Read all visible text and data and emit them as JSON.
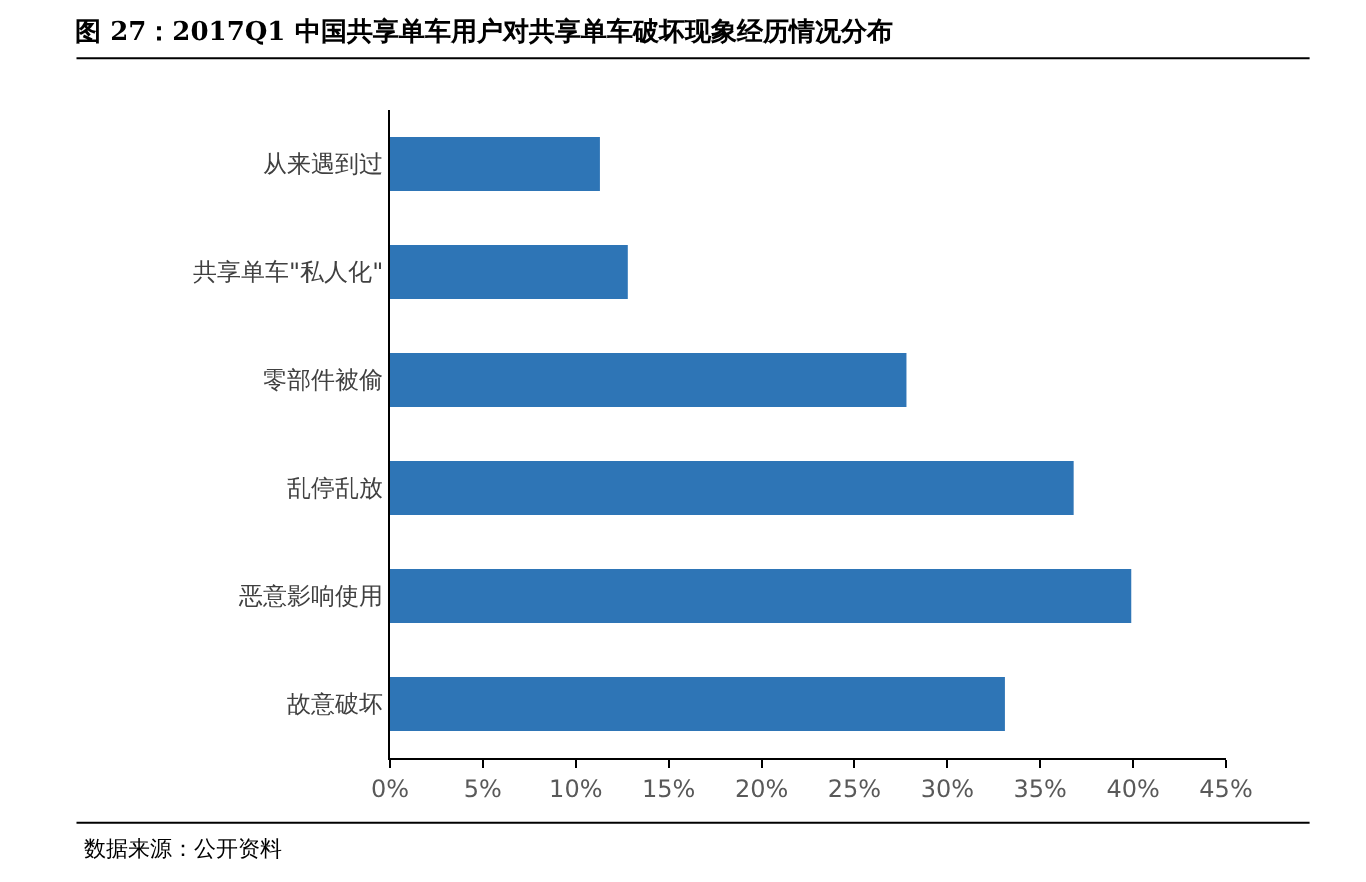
{
  "chart_data": {
    "type": "bar",
    "orientation": "horizontal",
    "title": "图 27：2017Q1 中国共享单车用户对共享单车破坏现象经历情况分布",
    "categories": [
      "从来遇到过",
      "共享单车\"私人化\"",
      "零部件被偷",
      "乱停乱放",
      "恶意影响使用",
      "故意破坏"
    ],
    "values": [
      11.3,
      12.8,
      27.8,
      36.8,
      39.9,
      33.1
    ],
    "color": "#2e75b6",
    "xlim": [
      0,
      45
    ],
    "xticks": [
      {
        "value": 0,
        "label": "0%"
      },
      {
        "value": 5,
        "label": "5%"
      },
      {
        "value": 10,
        "label": "10%"
      },
      {
        "value": 15,
        "label": "15%"
      },
      {
        "value": 20,
        "label": "20%"
      },
      {
        "value": 25,
        "label": "25%"
      },
      {
        "value": 30,
        "label": "30%"
      },
      {
        "value": 35,
        "label": "35%"
      },
      {
        "value": 40,
        "label": "40%"
      },
      {
        "value": 45,
        "label": "45%"
      }
    ],
    "legend": false,
    "annotations": [
      "数据来源：公开资料"
    ]
  }
}
